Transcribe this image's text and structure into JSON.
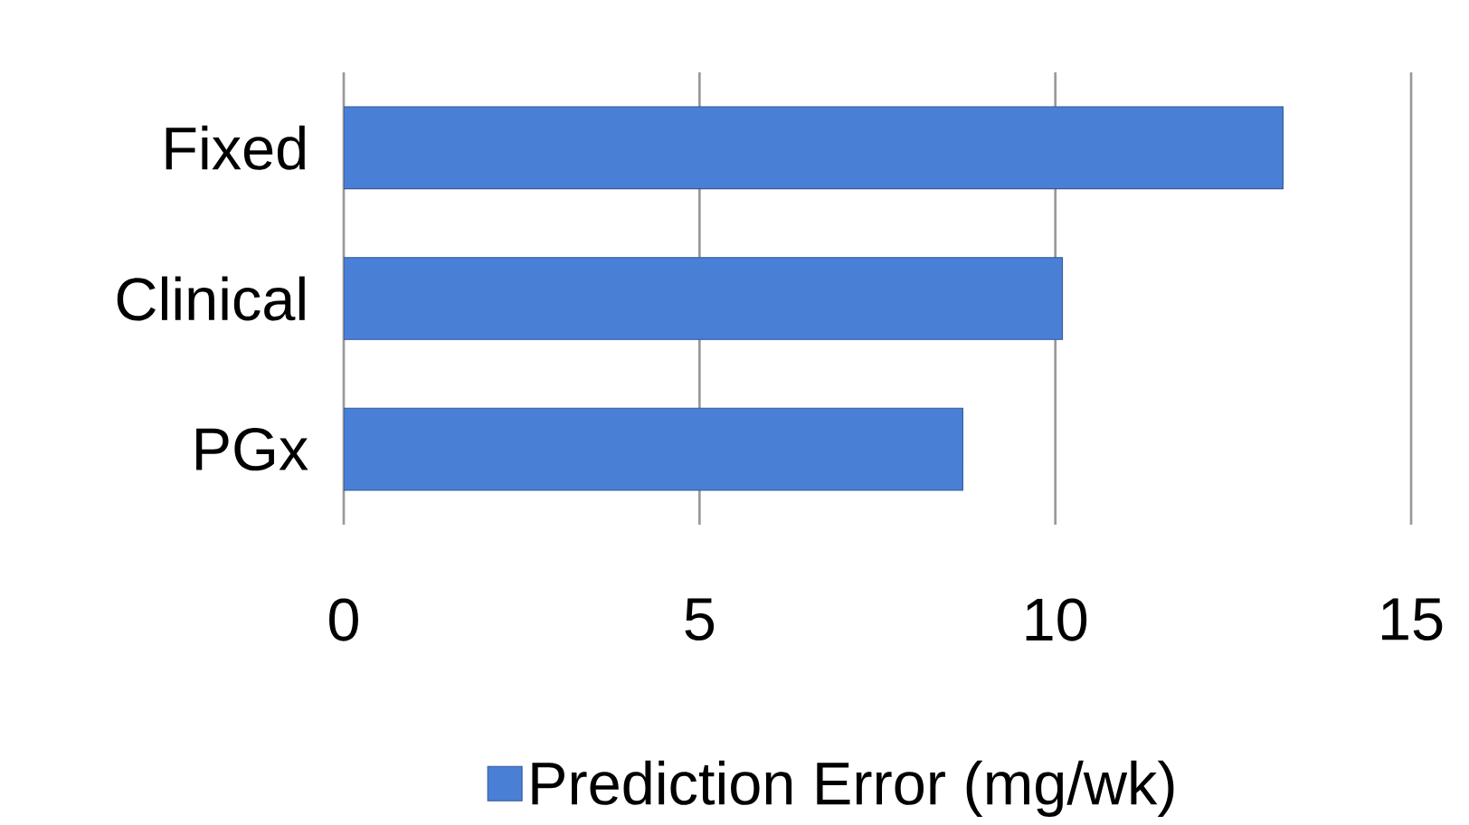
{
  "chart_data": {
    "type": "bar",
    "orientation": "horizontal",
    "categories": [
      "Fixed",
      "Clinical",
      "PGx"
    ],
    "series": [
      {
        "name": "Prediction Error (mg/wk)",
        "color": "#4a7fd6",
        "values": [
          13.2,
          10.1,
          8.7
        ]
      }
    ],
    "xlim": [
      0,
      15
    ],
    "xticks": [
      0,
      5,
      10,
      15
    ],
    "grid": "x",
    "legend": "bottom"
  }
}
